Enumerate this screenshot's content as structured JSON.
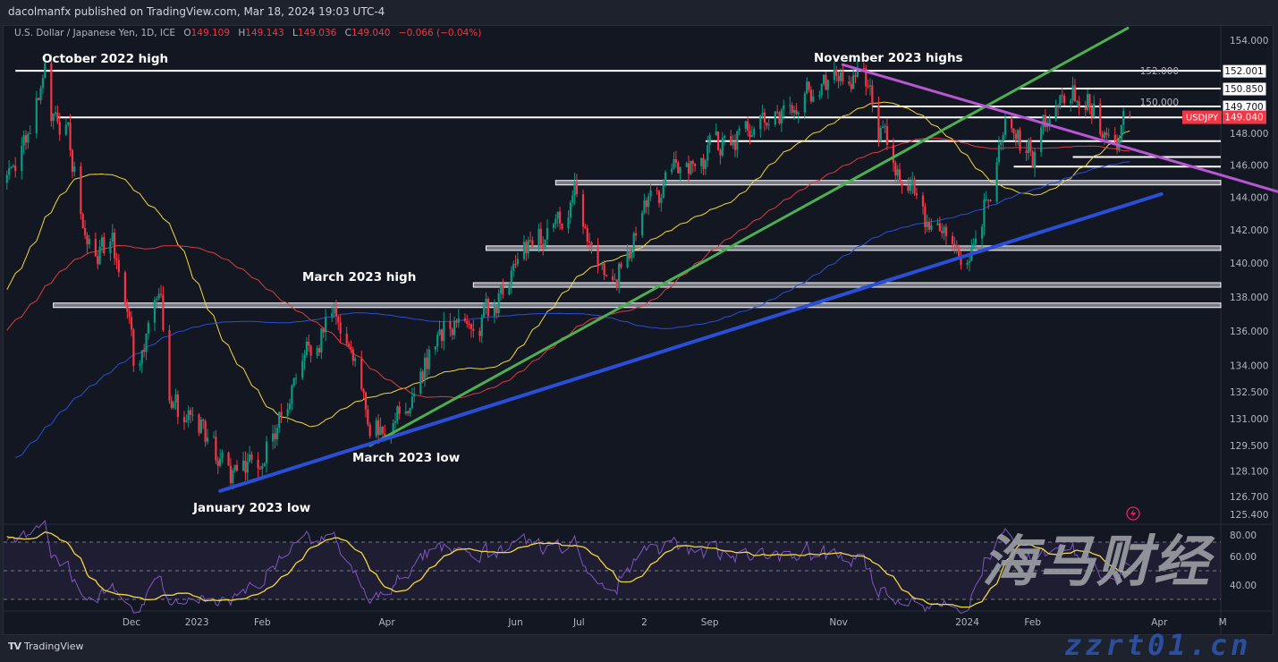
{
  "header": {
    "published": "dacolmanfx published on TradingView.com, Mar 18, 2024 19:03 UTC-4",
    "symbol_desc": "U.S. Dollar / Japanese Yen, 1D, ICE",
    "open_label": "O",
    "open": "149.109",
    "high_label": "H",
    "high": "149.143",
    "low_label": "L",
    "low": "149.036",
    "close_label": "C",
    "close": "149.040",
    "change": "−0.066 (−0.04%)"
  },
  "footer": {
    "brand": "TradingView",
    "logo": "TV"
  },
  "watermark": {
    "cn": "海马财经",
    "site": "zzrt01.cn"
  },
  "colors": {
    "background": "#131722",
    "up": "#089981",
    "down": "#f23645",
    "sma_fast": "#f2d73c",
    "sma_mid": "#e03a3e",
    "sma_slow": "#2a4fd6",
    "trend_green": "#4caf50",
    "trend_blue": "#2a4fd6",
    "trend_magenta": "#ba55d3",
    "rsi": "#7e57c2",
    "rsi_signal": "#f2d73c",
    "price_tag": "#f23645"
  },
  "chart_data": {
    "type": "candlestick",
    "symbol": "USDJPY",
    "timeframe": "1D",
    "y_scale": "log",
    "ylim": [
      125.4,
      155
    ],
    "y_ticks": [
      "154.000",
      "152.000",
      "150.000",
      "148.000",
      "146.000",
      "144.000",
      "142.000",
      "140.000",
      "138.000",
      "136.000",
      "134.000",
      "132.500",
      "131.000",
      "129.500",
      "128.100",
      "126.700",
      "125.400"
    ],
    "x_ticks": [
      {
        "label": "Dec",
        "date": "2022-12-01"
      },
      {
        "label": "2023",
        "date": "2023-01-01"
      },
      {
        "label": "Feb",
        "date": "2023-02-01"
      },
      {
        "label": "Apr",
        "date": "2023-04-01"
      },
      {
        "label": "Jun",
        "date": "2023-06-01"
      },
      {
        "label": "Jul",
        "date": "2023-07-01"
      },
      {
        "label": "2",
        "date": "2023-08-01"
      },
      {
        "label": "Sep",
        "date": "2023-09-01"
      },
      {
        "label": "Nov",
        "date": "2023-11-01"
      },
      {
        "label": "2024",
        "date": "2024-01-01"
      },
      {
        "label": "Feb",
        "date": "2024-02-01"
      },
      {
        "label": "Apr",
        "date": "2024-04-01"
      },
      {
        "label": "M",
        "date": "2024-05-01"
      }
    ],
    "x_range": [
      "2022-10-03",
      "2024-05-01"
    ],
    "approx_closes": [
      [
        "2022-10-03",
        144.5
      ],
      [
        "2022-10-21",
        151.5
      ],
      [
        "2022-10-24",
        149.0
      ],
      [
        "2022-11-01",
        148.0
      ],
      [
        "2022-11-10",
        141.0
      ],
      [
        "2022-11-15",
        139.5
      ],
      [
        "2022-11-21",
        142.0
      ],
      [
        "2022-12-01",
        136.0
      ],
      [
        "2022-12-02",
        134.5
      ],
      [
        "2022-12-15",
        137.5
      ],
      [
        "2022-12-20",
        131.5
      ],
      [
        "2023-01-03",
        130.5
      ],
      [
        "2023-01-16",
        127.8
      ],
      [
        "2023-02-01",
        128.8
      ],
      [
        "2023-02-10",
        131.5
      ],
      [
        "2023-02-20",
        134.5
      ],
      [
        "2023-03-08",
        137.3
      ],
      [
        "2023-03-24",
        130.5
      ],
      [
        "2023-04-05",
        131.0
      ],
      [
        "2023-04-28",
        136.3
      ],
      [
        "2023-05-15",
        136.0
      ],
      [
        "2023-05-31",
        139.5
      ],
      [
        "2023-06-30",
        144.5
      ],
      [
        "2023-07-14",
        138.2
      ],
      [
        "2023-08-01",
        143.0
      ],
      [
        "2023-08-15",
        145.5
      ],
      [
        "2023-09-15",
        147.8
      ],
      [
        "2023-10-03",
        149.5
      ],
      [
        "2023-10-31",
        151.5
      ],
      [
        "2023-11-13",
        151.8
      ],
      [
        "2023-11-21",
        148.0
      ],
      [
        "2023-12-07",
        144.0
      ],
      [
        "2023-12-14",
        141.5
      ],
      [
        "2024-01-02",
        141.0
      ],
      [
        "2024-01-19",
        148.0
      ],
      [
        "2024-02-01",
        146.5
      ],
      [
        "2024-02-13",
        150.5
      ],
      [
        "2024-02-28",
        150.5
      ],
      [
        "2024-03-08",
        147.0
      ],
      [
        "2024-03-18",
        149.04
      ]
    ],
    "moving_averages": [
      {
        "period": 50,
        "color": "#f2d73c"
      },
      {
        "period": 100,
        "color": "#e03a3e"
      },
      {
        "period": 200,
        "color": "#2a4fd6"
      }
    ],
    "levels": [
      {
        "price": 152.001,
        "from": "2022-10-07",
        "label": "152.001",
        "tag": true
      },
      {
        "price": 150.85,
        "from": "2024-01-25",
        "label": "150.850",
        "tag": true
      },
      {
        "price": 149.7,
        "from": "2023-11-17",
        "label": "149.700",
        "tag": true
      },
      {
        "price": 149.0,
        "from": "2022-10-27",
        "label": "",
        "tag": false
      },
      {
        "price": 147.5,
        "from": "2023-08-30",
        "label": "",
        "tag": false
      },
      {
        "price": 146.5,
        "from": "2024-02-20",
        "label": "",
        "tag": false
      },
      {
        "price": 145.9,
        "from": "2024-01-23",
        "label": "",
        "tag": false
      },
      {
        "price": 144.9,
        "from": "2023-06-20",
        "label": "",
        "tag": false,
        "double": true
      },
      {
        "price": 140.9,
        "from": "2023-05-18",
        "label": "",
        "tag": false,
        "double": true
      },
      {
        "price": 138.7,
        "from": "2023-05-12",
        "label": "",
        "tag": false,
        "double": true
      },
      {
        "price": 137.5,
        "from": "2022-10-25",
        "label": "",
        "tag": false,
        "double": true
      }
    ],
    "trendlines": [
      {
        "name": "green",
        "from": [
          "2023-03-24",
          129.5
        ],
        "to": [
          "2024-03-17",
          154.8
        ],
        "color": "#4caf50"
      },
      {
        "name": "blue",
        "from": [
          "2023-01-12",
          127.0
        ],
        "to": [
          "2024-04-02",
          144.2
        ],
        "color": "#2a4fd6"
      },
      {
        "name": "magenta",
        "from": [
          "2023-11-03",
          152.4
        ],
        "to": [
          "2024-05-31",
          144.2
        ],
        "color": "#ba55d3"
      }
    ],
    "annotations": [
      {
        "text": "October 2022 high"
      },
      {
        "text": "November 2023 highs"
      },
      {
        "text": "March 2023 high"
      },
      {
        "text": "March 2023 low"
      },
      {
        "text": "January 2023 low"
      }
    ],
    "last_price_tag": {
      "symbol": "USDJPY",
      "price": "149.040"
    },
    "rsi": {
      "period": 14,
      "signal_period": 14,
      "ylim": [
        20,
        85
      ],
      "bands": [
        70,
        50,
        30
      ],
      "y_ticks": [
        "80.00",
        "60.00",
        "40.00"
      ]
    }
  }
}
